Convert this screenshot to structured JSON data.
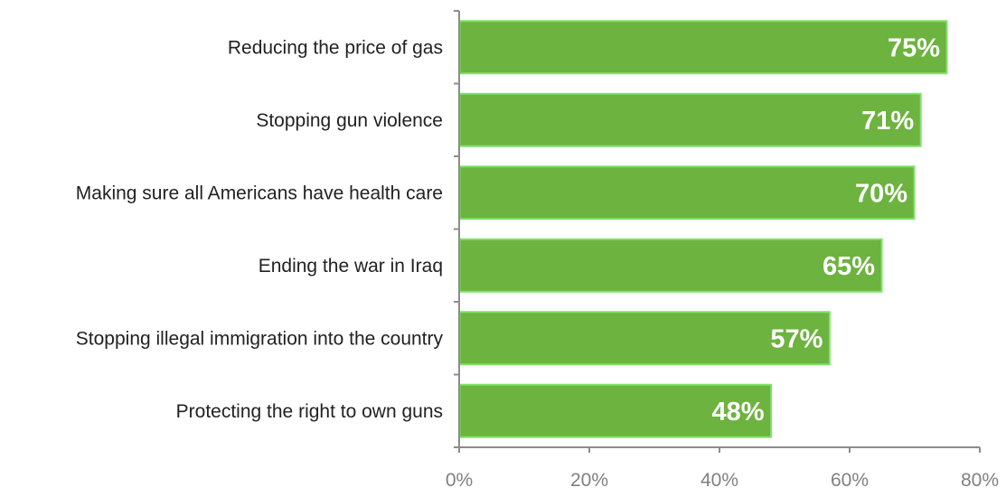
{
  "chart_data": {
    "type": "bar",
    "orientation": "horizontal",
    "categories": [
      "Reducing the price of gas",
      "Stopping gun violence",
      "Making sure all Americans have health care",
      "Ending the war in Iraq",
      "Stopping illegal immigration into the country",
      "Protecting the right to own guns"
    ],
    "values": [
      75,
      71,
      70,
      65,
      57,
      48
    ],
    "data_labels": [
      "75%",
      "71%",
      "70%",
      "65%",
      "57%",
      "48%"
    ],
    "xlim": [
      0,
      80
    ],
    "xticks": [
      0,
      20,
      40,
      60,
      80
    ],
    "xtick_labels": [
      "0%",
      "20%",
      "40%",
      "60%",
      "80%"
    ],
    "title": "",
    "xlabel": "",
    "ylabel": "",
    "grid": false,
    "colors": {
      "bar_fill": "#6db33f",
      "bar_stroke": "#7fe36a",
      "axis": "#8c8c8c",
      "category_text": "#222222",
      "tick_text": "#808080",
      "data_label_text": "#ffffff"
    }
  }
}
